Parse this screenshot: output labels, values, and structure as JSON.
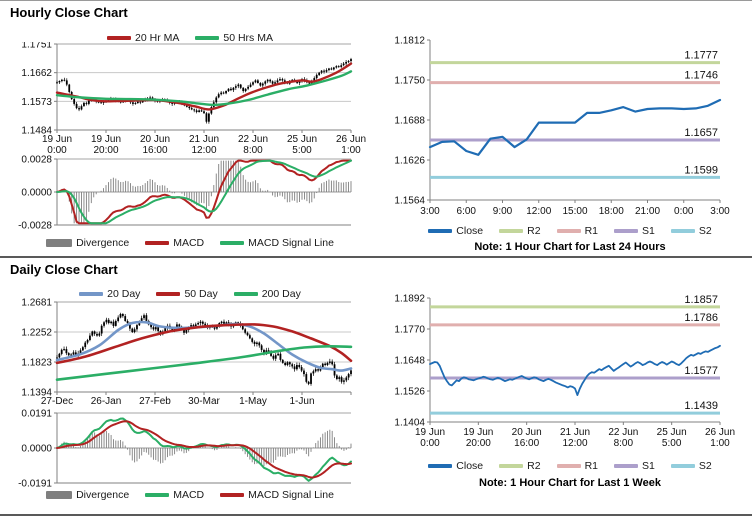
{
  "sections": {
    "hourly": {
      "title": "Hourly Close Chart"
    },
    "daily": {
      "title": "Daily Close Chart"
    }
  },
  "palette": {
    "candle": "#000000",
    "ma_red": "#B22222",
    "ma_green": "#2BAE66",
    "ma_blue": "#7396C8",
    "close_blue": "#1F6CB4",
    "r2": "#C3D69B",
    "r1": "#E0AFAE",
    "s1": "#AC9FCB",
    "s2": "#92CDDC",
    "divergence": "#7F7F7F"
  },
  "series": {
    "weekly_hourly_close": [
      1.1632,
      1.1636,
      1.164,
      1.1638,
      1.1625,
      1.1602,
      1.158,
      1.1565,
      1.1552,
      1.1548,
      1.1558,
      1.1568,
      1.1565,
      1.1575,
      1.158,
      1.1577,
      1.1572,
      1.157,
      1.1568,
      1.1572,
      1.1575,
      1.1578,
      1.1582,
      1.158,
      1.1575,
      1.1572,
      1.157,
      1.1574,
      1.1578,
      1.1575,
      1.157,
      1.1565,
      1.1568,
      1.1572,
      1.157,
      1.1574,
      1.1578,
      1.1582,
      1.1585,
      1.158,
      1.1575,
      1.1572,
      1.1576,
      1.158,
      1.1578,
      1.1572,
      1.1568,
      1.1565,
      1.157,
      1.1574,
      1.157,
      1.1565,
      1.156,
      1.1556,
      1.1552,
      1.1548,
      1.1545,
      1.154,
      1.1545,
      1.1542,
      1.1536,
      1.151,
      1.1535,
      1.1555,
      1.157,
      1.1585,
      1.1595,
      1.16,
      1.1598,
      1.1605,
      1.1612,
      1.1608,
      1.1615,
      1.162,
      1.1625,
      1.1615,
      1.1605,
      1.1612,
      1.1618,
      1.1625,
      1.1632,
      1.1638,
      1.163,
      1.1622,
      1.1628,
      1.1635,
      1.164,
      1.1635,
      1.1628,
      1.1632,
      1.1638,
      1.1642,
      1.1638,
      1.1632,
      1.1628,
      1.1635,
      1.164,
      1.1636,
      1.163,
      1.1636,
      1.1642,
      1.1638,
      1.1632,
      1.1628,
      1.1635,
      1.1645,
      1.1655,
      1.1662,
      1.1668,
      1.1665,
      1.167,
      1.1675,
      1.1672,
      1.1678,
      1.1682,
      1.168,
      1.1685,
      1.169,
      1.1695,
      1.1698,
      1.1704
    ],
    "daily_close": [
      1.1888,
      1.194,
      1.1998,
      1.2008,
      1.195,
      1.192,
      1.193,
      1.196,
      1.1925,
      1.1945,
      1.199,
      1.2035,
      1.21,
      1.2137,
      1.22,
      1.226,
      1.2225,
      1.22,
      1.223,
      1.234,
      1.239,
      1.2426,
      1.238,
      1.24,
      1.234,
      1.241,
      1.246,
      1.251,
      1.248,
      1.241,
      1.238,
      1.23,
      1.2252,
      1.229,
      1.235,
      1.24,
      1.245,
      1.2492,
      1.241,
      1.236,
      1.232,
      1.229,
      1.232,
      1.2266,
      1.222,
      1.226,
      1.231,
      1.234,
      1.231,
      1.228,
      1.231,
      1.236,
      1.233,
      1.229,
      1.224,
      1.228,
      1.232,
      1.235,
      1.233,
      1.236,
      1.238,
      1.24,
      1.237,
      1.234,
      1.231,
      1.233,
      1.2324,
      1.23,
      1.233,
      1.238,
      1.24,
      1.237,
      1.239,
      1.237,
      1.233,
      1.237,
      1.239,
      1.237,
      1.234,
      1.229,
      1.224,
      1.2206,
      1.216,
      1.211,
      1.208,
      1.21,
      1.206,
      1.1995,
      1.195,
      1.199,
      1.196,
      1.191,
      1.187,
      1.192,
      1.194,
      1.1853,
      1.181,
      1.178,
      1.182,
      1.179,
      1.176,
      1.172,
      1.178,
      1.175,
      1.17,
      1.165,
      1.154,
      1.151,
      1.166,
      1.169,
      1.172,
      1.17,
      1.175,
      1.1799,
      1.178,
      1.181,
      1.183,
      1.179,
      1.163,
      1.158,
      1.1606,
      1.154,
      1.156,
      1.1602,
      1.165,
      1.1703
    ],
    "last24_close": [
      1.1646,
      1.1654,
      1.1655,
      1.164,
      1.1634,
      1.1659,
      1.1662,
      1.1646,
      1.1658,
      1.1684,
      1.1684,
      1.1684,
      1.1684,
      1.1699,
      1.1699,
      1.1703,
      1.1708,
      1.1701,
      1.1705,
      1.1706,
      1.1706,
      1.1705,
      1.1706,
      1.171,
      1.1719
    ],
    "hourly_ma20_anchors": [
      [
        0,
        1.16
      ],
      [
        8,
        1.1588
      ],
      [
        14,
        1.1577
      ],
      [
        20,
        1.1573
      ],
      [
        30,
        1.1575
      ],
      [
        40,
        1.1577
      ],
      [
        48,
        1.157
      ],
      [
        56,
        1.1558
      ],
      [
        62,
        1.1548
      ],
      [
        68,
        1.156
      ],
      [
        74,
        1.1582
      ],
      [
        80,
        1.1602
      ],
      [
        88,
        1.1622
      ],
      [
        94,
        1.1632
      ],
      [
        100,
        1.1638
      ],
      [
        104,
        1.1634
      ],
      [
        108,
        1.1642
      ],
      [
        114,
        1.1662
      ],
      [
        120,
        1.169
      ]
    ],
    "hourly_ma50_anchors": [
      [
        0,
        1.1592
      ],
      [
        10,
        1.1585
      ],
      [
        20,
        1.1581
      ],
      [
        30,
        1.158
      ],
      [
        40,
        1.1578
      ],
      [
        50,
        1.1573
      ],
      [
        58,
        1.1566
      ],
      [
        64,
        1.1562
      ],
      [
        70,
        1.1566
      ],
      [
        78,
        1.1577
      ],
      [
        86,
        1.1594
      ],
      [
        94,
        1.161
      ],
      [
        102,
        1.1622
      ],
      [
        110,
        1.1638
      ],
      [
        116,
        1.1652
      ],
      [
        120,
        1.1666
      ]
    ],
    "daily_ma20_anchors": [
      [
        0,
        1.185
      ],
      [
        10,
        1.1935
      ],
      [
        18,
        1.206
      ],
      [
        26,
        1.228
      ],
      [
        32,
        1.238
      ],
      [
        38,
        1.239
      ],
      [
        44,
        1.233
      ],
      [
        52,
        1.231
      ],
      [
        60,
        1.232
      ],
      [
        68,
        1.234
      ],
      [
        76,
        1.2365
      ],
      [
        82,
        1.233
      ],
      [
        88,
        1.223
      ],
      [
        94,
        1.208
      ],
      [
        100,
        1.193
      ],
      [
        106,
        1.182
      ],
      [
        112,
        1.174
      ],
      [
        117,
        1.172
      ],
      [
        121,
        1.17
      ],
      [
        125,
        1.173
      ]
    ],
    "daily_ma50_anchors": [
      [
        0,
        1.181
      ],
      [
        12,
        1.19
      ],
      [
        24,
        1.203
      ],
      [
        36,
        1.216
      ],
      [
        48,
        1.226
      ],
      [
        60,
        1.232
      ],
      [
        72,
        1.235
      ],
      [
        84,
        1.236
      ],
      [
        92,
        1.233
      ],
      [
        100,
        1.226
      ],
      [
        108,
        1.216
      ],
      [
        116,
        1.205
      ],
      [
        121,
        1.195
      ],
      [
        125,
        1.184
      ]
    ],
    "daily_ma200_anchors": [
      [
        0,
        1.157
      ],
      [
        20,
        1.165
      ],
      [
        40,
        1.173
      ],
      [
        60,
        1.181
      ],
      [
        80,
        1.19
      ],
      [
        95,
        1.1985
      ],
      [
        105,
        1.203
      ],
      [
        115,
        1.2048
      ],
      [
        125,
        1.204
      ]
    ]
  },
  "chart_data": [
    {
      "id": "hourly-price",
      "type": "candlestick",
      "title": "Hourly Close Chart",
      "yticks": [
        "1.1751",
        "1.1662",
        "1.1573",
        "1.1484"
      ],
      "xticks_date": [
        "19 Jun",
        "19 Jun",
        "20 Jun",
        "21 Jun",
        "22 Jun",
        "25 Jun",
        "26 Jun"
      ],
      "xticks_time": [
        "0:00",
        "20:00",
        "16:00",
        "12:00",
        "8:00",
        "5:00",
        "1:00"
      ],
      "close_ref": "weekly_hourly_close",
      "grid": true,
      "legend": [
        {
          "label": "20 Hr MA",
          "color": "#B22222",
          "shape": "line"
        },
        {
          "label": "50 Hrs MA",
          "color": "#2BAE66",
          "shape": "line"
        }
      ]
    },
    {
      "id": "hourly-macd",
      "type": "macd",
      "yticks": [
        "0.0028",
        "0.0000",
        "-0.0028"
      ],
      "close_ref": "weekly_hourly_close",
      "macd_color": "#B22222",
      "signal_color": "#2BAE66",
      "display_gain": 1.8,
      "legend": [
        {
          "label": "Divergence",
          "color": "#7F7F7F",
          "shape": "box"
        },
        {
          "label": "MACD",
          "color": "#B22222",
          "shape": "line"
        },
        {
          "label": "MACD Signal Line",
          "color": "#2BAE66",
          "shape": "line"
        }
      ]
    },
    {
      "id": "last24-close",
      "type": "line",
      "yticks": [
        "1.1812",
        "1.1750",
        "1.1688",
        "1.1626",
        "1.1564"
      ],
      "xticks": [
        "3:00",
        "6:00",
        "9:00",
        "12:00",
        "15:00",
        "18:00",
        "21:00",
        "0:00",
        "3:00"
      ],
      "close_ref": "last24_close",
      "note": "Note: 1 Hour Chart for Last 24 Hours",
      "levels": [
        {
          "name": "R2",
          "label": "1.1777",
          "color": "#C3D69B"
        },
        {
          "name": "R1",
          "label": "1.1746",
          "color": "#E0AFAE"
        },
        {
          "name": "S1",
          "label": "1.1657",
          "color": "#AC9FCB"
        },
        {
          "name": "S2",
          "label": "1.1599",
          "color": "#92CDDC"
        }
      ],
      "legend": [
        {
          "label": "Close",
          "color": "#1F6CB4",
          "shape": "line"
        },
        {
          "label": "R2",
          "color": "#C3D69B",
          "shape": "line"
        },
        {
          "label": "R1",
          "color": "#E0AFAE",
          "shape": "line"
        },
        {
          "label": "S1",
          "color": "#AC9FCB",
          "shape": "line"
        },
        {
          "label": "S2",
          "color": "#92CDDC",
          "shape": "line"
        }
      ]
    },
    {
      "id": "daily-price",
      "type": "candlestick",
      "title": "Daily Close Chart",
      "yticks": [
        "1.2681",
        "1.2252",
        "1.1823",
        "1.1394"
      ],
      "xticks": [
        "27-Dec",
        "26-Jan",
        "27-Feb",
        "30-Mar",
        "1-May",
        "1-Jun",
        ""
      ],
      "close_ref": "daily_close",
      "grid": true,
      "legend": [
        {
          "label": "20 Day",
          "color": "#7396C8",
          "shape": "line"
        },
        {
          "label": "50 Day",
          "color": "#B22222",
          "shape": "line"
        },
        {
          "label": "200 Day",
          "color": "#2BAE66",
          "shape": "line"
        }
      ]
    },
    {
      "id": "daily-macd",
      "type": "macd",
      "yticks": [
        "0.0191",
        "0.0000",
        "-0.0191"
      ],
      "close_ref": "daily_close",
      "macd_color": "#2BAE66",
      "signal_color": "#B22222",
      "display_gain": 1.25,
      "legend": [
        {
          "label": "Divergence",
          "color": "#7F7F7F",
          "shape": "box"
        },
        {
          "label": "MACD",
          "color": "#2BAE66",
          "shape": "line"
        },
        {
          "label": "MACD Signal Line",
          "color": "#B22222",
          "shape": "line"
        }
      ]
    },
    {
      "id": "week-close",
      "type": "line",
      "yticks": [
        "1.1892",
        "1.1770",
        "1.1648",
        "1.1526",
        "1.1404"
      ],
      "xticks_date": [
        "19 Jun",
        "19 Jun",
        "20 Jun",
        "21 Jun",
        "22 Jun",
        "25 Jun",
        "26 Jun"
      ],
      "xticks_time": [
        "0:00",
        "20:00",
        "16:00",
        "12:00",
        "8:00",
        "5:00",
        "1:00"
      ],
      "close_ref": "weekly_hourly_close",
      "note": "Note: 1 Hour Chart for Last 1 Week",
      "levels": [
        {
          "name": "R2",
          "label": "1.1857",
          "color": "#C3D69B"
        },
        {
          "name": "R1",
          "label": "1.1786",
          "color": "#E0AFAE"
        },
        {
          "name": "S1",
          "label": "1.1577",
          "color": "#AC9FCB"
        },
        {
          "name": "S2",
          "label": "1.1439",
          "color": "#92CDDC"
        }
      ],
      "legend": [
        {
          "label": "Close",
          "color": "#1F6CB4",
          "shape": "line"
        },
        {
          "label": "R2",
          "color": "#C3D69B",
          "shape": "line"
        },
        {
          "label": "R1",
          "color": "#E0AFAE",
          "shape": "line"
        },
        {
          "label": "S1",
          "color": "#AC9FCB",
          "shape": "line"
        },
        {
          "label": "S2",
          "color": "#92CDDC",
          "shape": "line"
        }
      ]
    }
  ]
}
